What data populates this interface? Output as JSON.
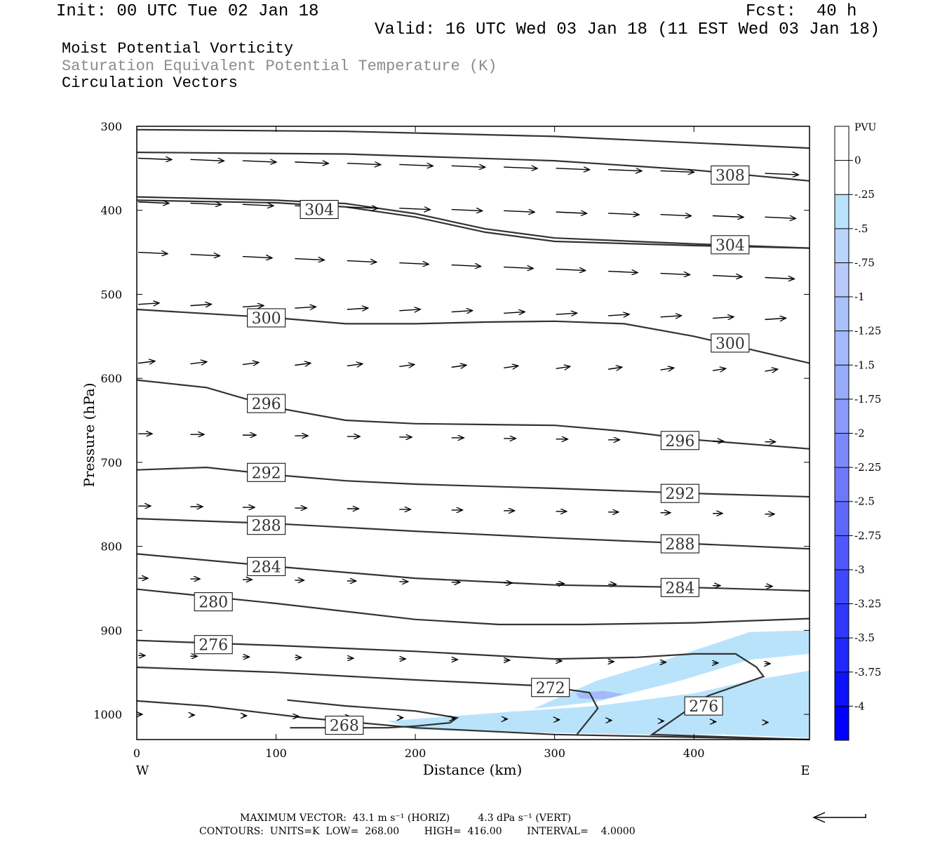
{
  "header": {
    "init": "Init: 00 UTC Tue 02 Jan 18",
    "fcst": "Fcst:  40 h",
    "valid": "Valid: 16 UTC Wed 03 Jan 18 (11 EST Wed 03 Jan 18)"
  },
  "fields": {
    "line1": "Moist Potential Vorticity",
    "line2": "Saturation Equivalent Potential Temperature (K)",
    "line3": "Circulation Vectors"
  },
  "footer": {
    "line1": "MAXIMUM VECTOR:  43.1 m s⁻¹ (HORIZ)         4.3 dPa s⁻¹ (VERT)",
    "line2": "CONTOURS:  UNITS=K  LOW=  268.00        HIGH=  416.00        INTERVAL=    4.0000"
  },
  "colors": {
    "contour": "#333333",
    "shade_light": "#b9e3fb",
    "shade_mid": "#a4b9fb",
    "axis": "#000000"
  },
  "chart_data": {
    "type": "cross-section",
    "xlabel": "Distance (km)",
    "ylabel": "Pressure (hPa)",
    "xlim": [
      0,
      483
    ],
    "ylim": [
      1030,
      300
    ],
    "x_ticks": [
      0,
      100,
      200,
      300,
      400
    ],
    "y_ticks": [
      300,
      400,
      500,
      600,
      700,
      800,
      900,
      1000
    ],
    "x_end_labels": [
      "W",
      "E"
    ],
    "colorbar": {
      "title": "PVU",
      "levels": [
        "0",
        "-.25",
        "-.5",
        "-.75",
        "-1",
        "-1.25",
        "-1.5",
        "-1.75",
        "-2",
        "-2.25",
        "-2.5",
        "-2.75",
        "-3",
        "-3.25",
        "-3.5",
        "-3.75",
        "-4"
      ],
      "colors": [
        "#ffffff",
        "#ffffff",
        "#b9e3fb",
        "#b9d5fb",
        "#b8cafb",
        "#a9c0fb",
        "#a4b9fb",
        "#99acfb",
        "#8b9afb",
        "#7d89fb",
        "#6f78fb",
        "#6068fb",
        "#5058fb",
        "#4048fb",
        "#3038fb",
        "#2028fb",
        "#0d12fb",
        "#0000fb"
      ]
    },
    "contours": [
      {
        "label": "",
        "points": [
          [
            0,
            304
          ],
          [
            150,
            306
          ],
          [
            300,
            312
          ],
          [
            483,
            326
          ]
        ]
      },
      {
        "label": "308",
        "label_at": [
          426,
          358
        ],
        "points": [
          [
            0,
            331
          ],
          [
            150,
            333
          ],
          [
            300,
            341
          ],
          [
            400,
            352
          ],
          [
            483,
            365
          ]
        ]
      },
      {
        "label": "",
        "points": [
          [
            0,
            384
          ],
          [
            100,
            388
          ],
          [
            150,
            392
          ],
          [
            200,
            404
          ],
          [
            250,
            422
          ],
          [
            300,
            433
          ],
          [
            400,
            440
          ],
          [
            483,
            445
          ]
        ]
      },
      {
        "label": "304",
        "label_at": [
          131,
          399
        ],
        "points": [
          [
            0,
            388
          ],
          [
            100,
            391
          ],
          [
            150,
            396
          ],
          [
            200,
            408
          ],
          [
            250,
            426
          ],
          [
            300,
            437
          ],
          [
            400,
            442
          ],
          [
            483,
            445
          ]
        ]
      },
      {
        "label": "304",
        "label_at": [
          426,
          441
        ],
        "points": [
          [
            0,
            388
          ],
          [
            483,
            445
          ]
        ]
      },
      {
        "label": "300",
        "label_at": [
          93,
          528
        ],
        "points": [
          [
            0,
            518
          ],
          [
            100,
            528
          ],
          [
            150,
            535
          ],
          [
            200,
            535
          ],
          [
            250,
            533
          ],
          [
            300,
            532
          ],
          [
            350,
            535
          ],
          [
            400,
            550
          ],
          [
            483,
            582
          ]
        ]
      },
      {
        "label": "300",
        "label_at": [
          426,
          558
        ],
        "points": [
          [
            0,
            518
          ],
          [
            483,
            582
          ]
        ]
      },
      {
        "label": "296",
        "label_at": [
          93,
          630
        ],
        "points": [
          [
            0,
            602
          ],
          [
            50,
            611
          ],
          [
            100,
            635
          ],
          [
            150,
            650
          ],
          [
            200,
            654
          ],
          [
            250,
            655
          ],
          [
            300,
            656
          ],
          [
            350,
            663
          ],
          [
            400,
            673
          ],
          [
            483,
            684
          ]
        ]
      },
      {
        "label": "296",
        "label_at": [
          390,
          674
        ],
        "points": [
          [
            0,
            602
          ],
          [
            483,
            684
          ]
        ]
      },
      {
        "label": "292",
        "label_at": [
          93,
          712
        ],
        "points": [
          [
            0,
            709
          ],
          [
            50,
            706
          ],
          [
            100,
            715
          ],
          [
            150,
            722
          ],
          [
            200,
            726
          ],
          [
            300,
            731
          ],
          [
            400,
            737
          ],
          [
            483,
            741
          ]
        ]
      },
      {
        "label": "292",
        "label_at": [
          390,
          737
        ],
        "points": [
          [
            0,
            709
          ],
          [
            483,
            741
          ]
        ]
      },
      {
        "label": "288",
        "label_at": [
          93,
          775
        ],
        "points": [
          [
            0,
            767
          ],
          [
            100,
            773
          ],
          [
            200,
            782
          ],
          [
            300,
            790
          ],
          [
            400,
            797
          ],
          [
            483,
            803
          ]
        ]
      },
      {
        "label": "288",
        "label_at": [
          390,
          797
        ],
        "points": [
          [
            0,
            767
          ],
          [
            483,
            803
          ]
        ]
      },
      {
        "label": "284",
        "label_at": [
          93,
          824
        ],
        "points": [
          [
            0,
            809
          ],
          [
            100,
            824
          ],
          [
            200,
            838
          ],
          [
            300,
            846
          ],
          [
            400,
            849
          ],
          [
            483,
            853
          ]
        ]
      },
      {
        "label": "284",
        "label_at": [
          390,
          849
        ],
        "points": [
          [
            0,
            809
          ],
          [
            483,
            853
          ]
        ]
      },
      {
        "label": "280",
        "label_at": [
          55,
          866
        ],
        "points": [
          [
            0,
            851
          ],
          [
            100,
            868
          ],
          [
            200,
            887
          ],
          [
            260,
            893
          ],
          [
            320,
            893
          ],
          [
            400,
            891
          ],
          [
            483,
            886
          ]
        ]
      },
      {
        "label": "276",
        "label_at": [
          55,
          917
        ],
        "points": [
          [
            0,
            912
          ],
          [
            100,
            918
          ],
          [
            200,
            925
          ],
          [
            300,
            934
          ],
          [
            360,
            932
          ],
          [
            400,
            928
          ],
          [
            430,
            928
          ],
          [
            445,
            944
          ],
          [
            450,
            955
          ],
          [
            410,
            978
          ],
          [
            370,
            1024
          ],
          [
            483,
            1030
          ]
        ]
      },
      {
        "label": "276",
        "label_at": [
          407,
          990
        ],
        "points": [
          [
            370,
            1024
          ],
          [
            410,
            978
          ]
        ]
      },
      {
        "label": "272",
        "label_at": [
          297,
          968
        ],
        "points": [
          [
            0,
            944
          ],
          [
            100,
            950
          ],
          [
            200,
            959
          ],
          [
            290,
            966
          ],
          [
            325,
            974
          ],
          [
            331,
            993
          ],
          [
            316,
            1024
          ]
        ]
      },
      {
        "label": "268",
        "label_at": [
          149,
          1013
        ],
        "points": [
          [
            0,
            984
          ],
          [
            50,
            990
          ],
          [
            120,
            1004
          ],
          [
            200,
            1016
          ],
          [
            300,
            1024
          ],
          [
            483,
            1030
          ]
        ]
      },
      {
        "label": "",
        "points": [
          [
            108,
            983
          ],
          [
            150,
            990
          ],
          [
            200,
            996
          ],
          [
            230,
            1004
          ],
          [
            225,
            1010
          ],
          [
            200,
            1014
          ],
          [
            180,
            1016
          ],
          [
            150,
            1016
          ],
          [
            110,
            1016
          ]
        ]
      }
    ]
  }
}
